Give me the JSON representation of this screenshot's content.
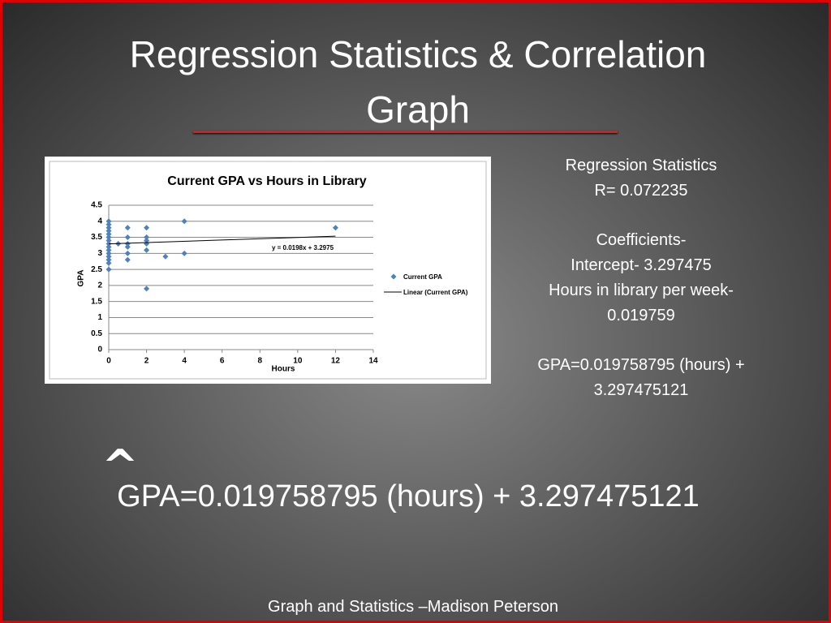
{
  "title": "Regression Statistics & Correlation Graph",
  "stats_lines": [
    "Regression Statistics",
    "R= 0.072235",
    "Coefficients-",
    "Intercept-  3.297475",
    "Hours in library per week-",
    "0.019759",
    "GPA=0.019758795 (hours) +",
    "3.297475121"
  ],
  "hat": "^",
  "equation": "GPA=0.019758795 (hours) + 3.297475121",
  "footer": "Graph and Statistics –Madison Peterson",
  "chart_data": {
    "type": "scatter",
    "title": "Current GPA vs Hours in Library",
    "x_label": "Hours",
    "y_label": "GPA",
    "series": [
      {
        "name": "Current GPA",
        "color": "#4f81bd",
        "x": [
          0,
          0,
          0,
          0,
          0,
          0,
          0,
          0,
          0,
          0,
          0,
          0,
          0,
          0,
          0,
          0.5,
          1,
          1,
          1,
          1,
          1,
          1,
          2,
          2,
          2,
          2,
          2,
          2,
          3,
          4,
          4,
          12
        ],
        "values": [
          4.0,
          3.9,
          3.8,
          3.7,
          3.6,
          3.5,
          3.4,
          3.3,
          3.2,
          3.1,
          3.0,
          2.9,
          2.8,
          2.7,
          2.5,
          3.3,
          3.8,
          3.5,
          3.3,
          3.2,
          3.0,
          2.8,
          3.8,
          3.5,
          3.4,
          3.3,
          3.1,
          1.9,
          2.9,
          4.0,
          3.0,
          3.8
        ]
      }
    ],
    "trendline": {
      "name": "Linear (Current GPA)",
      "slope": 0.0198,
      "intercept": 3.2975,
      "label": "y = 0.0198x + 3.2975",
      "color": "#000000"
    },
    "xlim": [
      0,
      14
    ],
    "xticks": [
      0,
      2,
      4,
      6,
      8,
      10,
      12,
      14
    ],
    "ylim": [
      0,
      4.5
    ],
    "yticks": [
      0,
      0.5,
      1,
      1.5,
      2,
      2.5,
      3,
      3.5,
      4,
      4.5
    ],
    "grid": true,
    "legend": "right"
  }
}
